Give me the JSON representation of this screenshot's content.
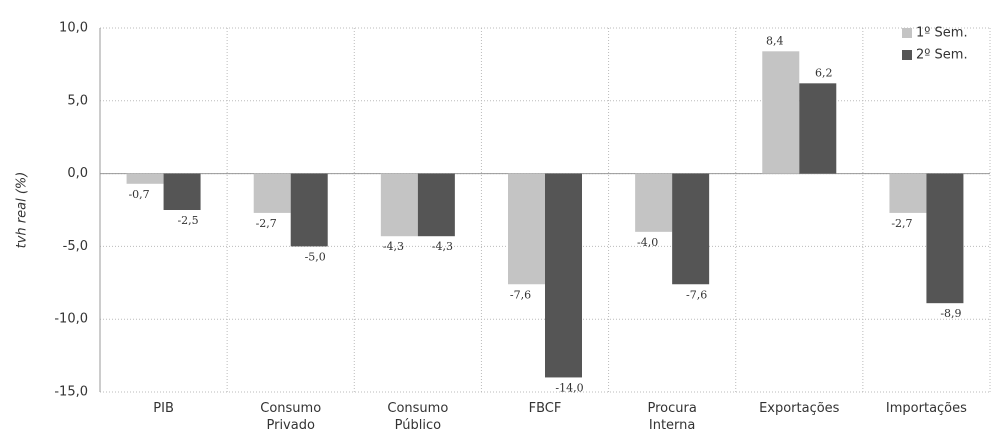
{
  "chart_data": {
    "type": "bar",
    "y_label": "tvh real (%)",
    "categories": [
      "PIB",
      "Consumo Privado",
      "Consumo Público",
      "FBCF",
      "Procura Interna",
      "Exportações",
      "Importações"
    ],
    "series": [
      {
        "name": "1º Sem.",
        "color": "#c4c4c4",
        "values": [
          -0.7,
          -2.7,
          -4.3,
          -7.6,
          -4.0,
          8.4,
          -2.7
        ],
        "value_labels": [
          "-0,7",
          "-2,7",
          "-4,3",
          "-7,6",
          "-4,0",
          "8,4",
          "-2,7"
        ]
      },
      {
        "name": "2º Sem.",
        "color": "#555555",
        "values": [
          -2.5,
          -5.0,
          -4.3,
          -14.0,
          -7.6,
          6.2,
          -8.9
        ],
        "value_labels": [
          "-2,5",
          "-5,0",
          "-4,3",
          "-14,0",
          "-7,6",
          "6,2",
          "-8,9"
        ]
      }
    ],
    "ylim": [
      -15,
      10
    ],
    "yticks": [
      {
        "value": -15,
        "label": "-15,0"
      },
      {
        "value": -10,
        "label": "-10,0"
      },
      {
        "value": -5,
        "label": "-5,0"
      },
      {
        "value": 0,
        "label": "0,0"
      },
      {
        "value": 5,
        "label": "5,0"
      },
      {
        "value": 10,
        "label": "10,0"
      }
    ],
    "grid": true,
    "legend": "top-right"
  }
}
